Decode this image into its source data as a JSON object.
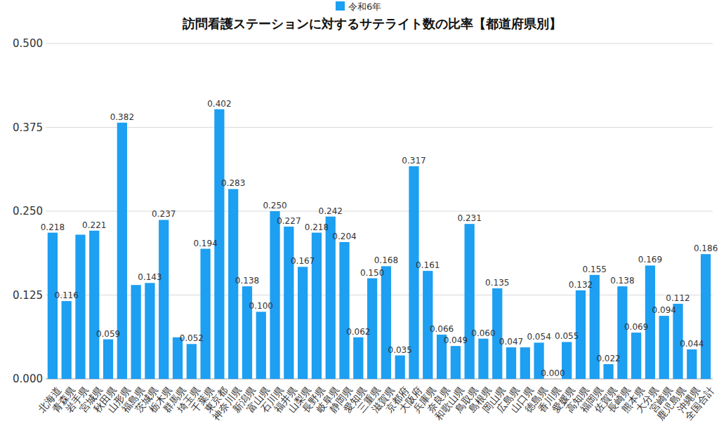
{
  "chart_data": {
    "type": "bar",
    "title": "訪問看護ステーションに対するサテライト数の比率【都道府県別】",
    "categories": [
      "北海道",
      "青森県",
      "岩手県",
      "宮城県",
      "秋田県",
      "山形県",
      "福島県",
      "茨城県",
      "栃木県",
      "群馬県",
      "埼玉県",
      "千葉県",
      "東京都",
      "神奈川県",
      "新潟県",
      "富山県",
      "石川県",
      "福井県",
      "山梨県",
      "長野県",
      "岐阜県",
      "静岡県",
      "愛知県",
      "三重県",
      "滋賀県",
      "京都府",
      "大阪府",
      "兵庫県",
      "奈良県",
      "和歌山県",
      "鳥取県",
      "島根県",
      "岡山県",
      "広島県",
      "山口県",
      "徳島県",
      "香川県",
      "愛媛県",
      "高知県",
      "福岡県",
      "佐賀県",
      "長崎県",
      "熊本県",
      "大分県",
      "宮崎県",
      "鹿児島県",
      "沖縄県",
      "全国合計"
    ],
    "series": [
      {
        "name": "令和6年",
        "color": "#1d9ff2",
        "values": [
          0.218,
          0.116,
          0.215,
          0.221,
          0.059,
          0.382,
          0.14,
          0.143,
          0.237,
          0.062,
          0.052,
          0.194,
          0.402,
          0.283,
          0.138,
          0.1,
          0.25,
          0.227,
          0.167,
          0.218,
          0.242,
          0.204,
          0.062,
          0.15,
          0.168,
          0.035,
          0.317,
          0.161,
          0.066,
          0.049,
          0.231,
          0.06,
          0.135,
          0.047,
          0.047,
          0.054,
          0.0,
          0.055,
          0.132,
          0.155,
          0.022,
          0.138,
          0.069,
          0.169,
          0.094,
          0.112,
          0.044,
          0.186
        ],
        "value_labels": [
          "0.218",
          "0.116",
          null,
          "0.221",
          "0.059",
          "0.382",
          null,
          "0.143",
          "0.237",
          null,
          "0.052",
          "0.194",
          "0.402",
          "0.283",
          "0.138",
          "0.100",
          "0.250",
          "0.227",
          "0.167",
          "0.218",
          "0.242",
          "0.204",
          "0.062",
          "0.150",
          "0.168",
          "0.035",
          "0.317",
          "0.161",
          "0.066",
          "0.049",
          "0.231",
          "0.060",
          "0.135",
          "0.047",
          null,
          "0.054",
          "0.000",
          "0.055",
          "0.132",
          "0.155",
          "0.022",
          "0.138",
          "0.069",
          "0.169",
          "0.094",
          "0.112",
          "0.044",
          "0.186"
        ]
      }
    ],
    "ylim": [
      0,
      0.5
    ],
    "yticks": [
      {
        "value": 0,
        "label": "0.000"
      },
      0.125,
      {
        "value": 0.25,
        "label": "0.250"
      },
      0.375,
      {
        "value": 0.5,
        "label": "0.500"
      }
    ],
    "grid": true,
    "legend": "top",
    "data_labels": true
  }
}
